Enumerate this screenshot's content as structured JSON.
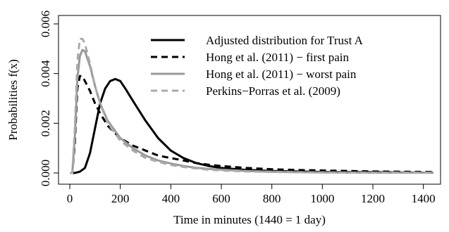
{
  "chart_data": {
    "type": "line",
    "title": "",
    "xlabel": "Time in minutes (1440 = 1 day)",
    "ylabel": "Probabilities f(x)",
    "xlim": [
      0,
      1440
    ],
    "ylim": [
      0,
      0.006
    ],
    "x_ticks": [
      0,
      200,
      400,
      600,
      800,
      1000,
      1200,
      1400
    ],
    "x_tick_labels": [
      "0",
      "200",
      "400",
      "600",
      "800",
      "1000",
      "1200",
      "1400"
    ],
    "y_ticks": [
      0,
      0.002,
      0.004,
      0.006
    ],
    "y_tick_labels": [
      "0.000",
      "0.002",
      "0.004",
      "0.006"
    ],
    "grid": false,
    "legend_position": "top-right",
    "series": [
      {
        "name": "Adjusted distribution for Trust A",
        "color": "#000000",
        "dash": "solid",
        "x": [
          0,
          20,
          40,
          60,
          80,
          100,
          120,
          140,
          160,
          180,
          200,
          220,
          250,
          300,
          350,
          400,
          450,
          500,
          550,
          600,
          700,
          800,
          900,
          1000,
          1100,
          1200,
          1300,
          1440
        ],
        "y": [
          0.0,
          0.0,
          5e-05,
          0.0002,
          0.0008,
          0.0018,
          0.0028,
          0.0034,
          0.0037,
          0.00378,
          0.0037,
          0.0034,
          0.0029,
          0.0021,
          0.0014,
          0.0009,
          0.0006,
          0.0004,
          0.00028,
          0.0002,
          0.00012,
          8e-05,
          6e-05,
          4e-05,
          3e-05,
          3e-05,
          2e-05,
          1e-05
        ]
      },
      {
        "name": "Hong et al. (2011) − first pain",
        "color": "#000000",
        "dash": "dashed",
        "x": [
          0,
          10,
          20,
          30,
          40,
          50,
          60,
          80,
          100,
          120,
          150,
          200,
          250,
          300,
          350,
          400,
          450,
          500,
          550,
          600,
          700,
          800,
          900,
          1000,
          1100,
          1200,
          1300,
          1440
        ],
        "y": [
          0.0,
          0.0,
          0.0012,
          0.0034,
          0.0039,
          0.0039,
          0.0037,
          0.0033,
          0.0028,
          0.0024,
          0.0019,
          0.0014,
          0.0011,
          0.0009,
          0.0007,
          0.0006,
          0.0005,
          0.0004,
          0.00033,
          0.00028,
          0.0002,
          0.00015,
          0.00012,
          0.0001,
          8e-05,
          6e-05,
          5e-05,
          4e-05
        ]
      },
      {
        "name": "Hong et al. (2011) − worst pain",
        "color": "#999999",
        "dash": "solid",
        "x": [
          0,
          10,
          20,
          30,
          40,
          50,
          60,
          80,
          100,
          120,
          150,
          200,
          250,
          300,
          350,
          400,
          450,
          500,
          550,
          600,
          700,
          800,
          900,
          1000,
          1100,
          1200,
          1300,
          1440
        ],
        "y": [
          0.0,
          0.0,
          0.0015,
          0.0038,
          0.0047,
          0.00495,
          0.0049,
          0.0043,
          0.0035,
          0.0028,
          0.0021,
          0.0014,
          0.001,
          0.0007,
          0.0005,
          0.00038,
          0.00028,
          0.00021,
          0.00016,
          0.00013,
          8e-05,
          5e-05,
          3e-05,
          2e-05,
          1.5e-05,
          1e-05,
          1e-05,
          1e-05
        ]
      },
      {
        "name": "Perkins−Porras et al. (2009)",
        "color": "#aaaaaa",
        "dash": "dashed",
        "x": [
          0,
          10,
          20,
          30,
          40,
          50,
          60,
          80,
          100,
          120,
          150,
          200,
          250,
          300,
          350,
          400,
          450,
          500,
          550,
          600,
          700,
          800,
          900,
          1000,
          1100,
          1200,
          1300,
          1440
        ],
        "y": [
          0.0,
          0.0,
          0.0018,
          0.0045,
          0.0054,
          0.0054,
          0.0052,
          0.0044,
          0.0035,
          0.0028,
          0.002,
          0.0013,
          0.0009,
          0.0006,
          0.00045,
          0.00032,
          0.00024,
          0.00018,
          0.00013,
          0.0001,
          6e-05,
          4e-05,
          3e-05,
          2e-05,
          1.5e-05,
          1e-05,
          1e-05,
          1e-05
        ]
      }
    ]
  }
}
